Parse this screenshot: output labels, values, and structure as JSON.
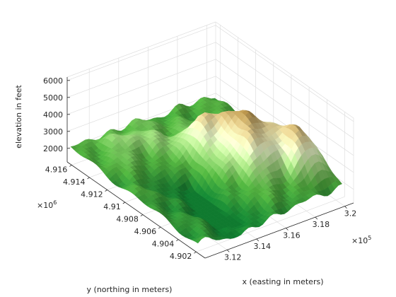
{
  "chart_data": {
    "type": "surface",
    "title": "",
    "xlabel": "x (easting in meters)",
    "ylabel": "y (northing in meters)",
    "zlabel": "elevation in feet",
    "colormap": "demcmap",
    "grid": true,
    "view": "3d",
    "x_ticks": [
      "3.12",
      "3.14",
      "3.16",
      "3.18",
      "3.2"
    ],
    "x_tick_values": [
      312000,
      314000,
      316000,
      318000,
      320000
    ],
    "x_exponent_base": "×10",
    "x_exponent_power": "5",
    "y_ticks": [
      "4.902",
      "4.904",
      "4.906",
      "4.908",
      "4.91",
      "4.912",
      "4.914",
      "4.916"
    ],
    "y_tick_values": [
      4902000,
      4904000,
      4906000,
      4908000,
      4910000,
      4912000,
      4914000,
      4916000
    ],
    "y_exponent_base": "×10",
    "y_exponent_power": "6",
    "z_ticks": [
      "2000",
      "3000",
      "4000",
      "5000",
      "6000"
    ],
    "z_tick_values": [
      2000,
      3000,
      4000,
      5000,
      6000
    ],
    "xlim": [
      310500,
      320600
    ],
    "ylim": [
      4901000,
      4916500
    ],
    "zlim": [
      1200,
      6200
    ],
    "elevation_range": [
      1300,
      5500
    ],
    "color_stops": [
      {
        "value": 1300,
        "color": "#0f7a2f"
      },
      {
        "value": 2200,
        "color": "#4ea83c"
      },
      {
        "value": 3000,
        "color": "#a7d884"
      },
      {
        "value": 3600,
        "color": "#e6f3c4"
      },
      {
        "value": 4200,
        "color": "#d7c48a"
      },
      {
        "value": 4800,
        "color": "#a8843f"
      },
      {
        "value": 5500,
        "color": "#6b3f12"
      }
    ]
  }
}
